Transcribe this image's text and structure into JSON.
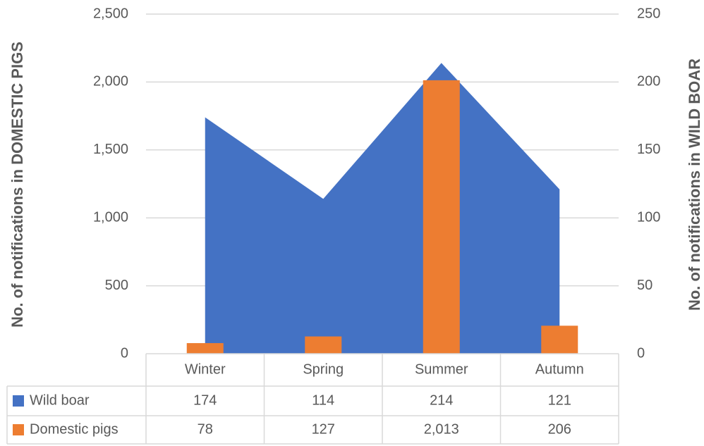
{
  "chart_data": {
    "type": "combo",
    "y_label": "No. of notifications in DOMESTIC PIGS",
    "y2_label": "No. of notifications in WILD BOAR",
    "categories": [
      "Winter",
      "Spring",
      "Summer",
      "Autumn"
    ],
    "series": [
      {
        "name": "Wild boar",
        "type": "area",
        "axis": "y2",
        "color": "#4472c4",
        "values": [
          174,
          114,
          214,
          121
        ]
      },
      {
        "name": "Domestic pigs",
        "type": "bar",
        "axis": "y",
        "color": "#ed7d31",
        "values": [
          78,
          127,
          2013,
          206
        ],
        "value_labels": [
          "78",
          "127",
          "2,013",
          "206"
        ]
      }
    ],
    "ylim": [
      0,
      2500
    ],
    "yticks": [
      0,
      500,
      {
        "value": 1000,
        "label": "1,000"
      },
      {
        "value": 1500,
        "label": "1,500"
      },
      {
        "value": 2000,
        "label": "2,000"
      },
      {
        "value": 2500,
        "label": "2,500"
      }
    ],
    "y2lim": [
      0,
      250
    ],
    "y2ticks": [
      0,
      50,
      100,
      150,
      200,
      250
    ],
    "grid": true
  }
}
